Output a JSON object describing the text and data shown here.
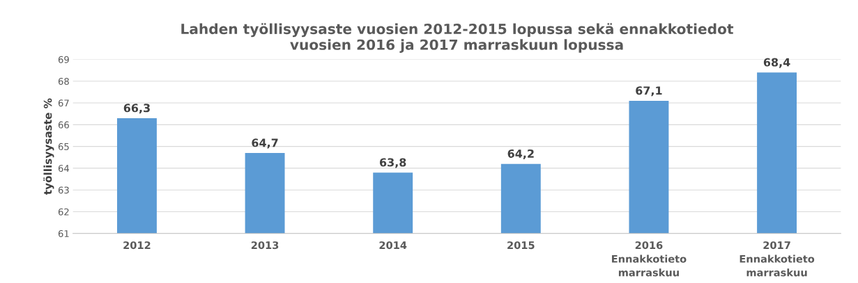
{
  "chart_data": {
    "type": "bar",
    "title": "Lahden työllisyysaste vuosien 2012-2015 lopussa sekä ennakkotiedot\nvuosien 2016 ja 2017 marraskuun lopussa",
    "ylabel": "työllisyysaste %",
    "categories": [
      "2012",
      "2013",
      "2014",
      "2015",
      "2016\nEnnakkotieto\nmarraskuu",
      "2017\nEnnakkotieto\nmarraskuu"
    ],
    "values": [
      66.3,
      64.7,
      63.8,
      64.2,
      67.1,
      68.4
    ],
    "value_labels": [
      "66,3",
      "64,7",
      "63,8",
      "64,2",
      "67,1",
      "68,4"
    ],
    "color": "#5b9bd5",
    "ylim": [
      61,
      69
    ],
    "yticks": [
      61,
      62,
      63,
      64,
      65,
      66,
      67,
      68,
      69
    ],
    "grid": "y",
    "legend": false
  }
}
